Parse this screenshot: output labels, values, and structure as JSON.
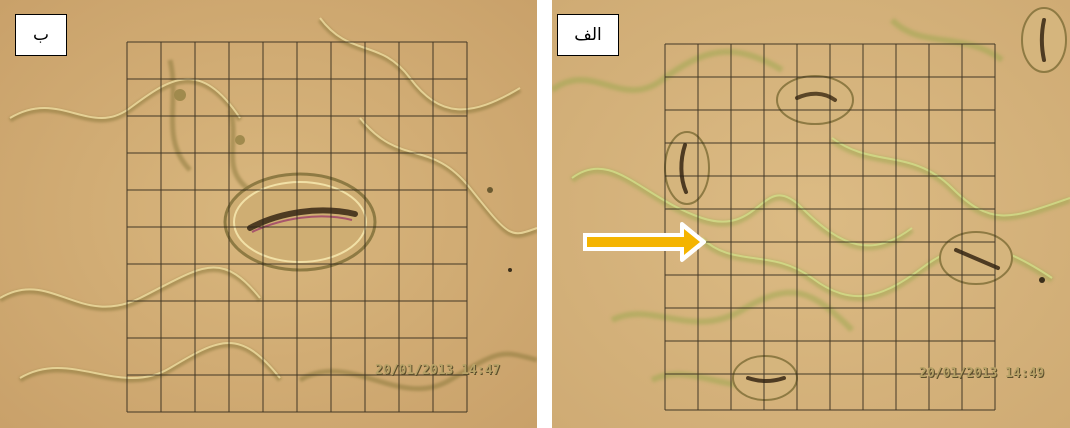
{
  "panels": {
    "right_panel": {
      "label": "ب",
      "timestamp": "20/01/2013 14:47"
    },
    "left_panel": {
      "label": "الف",
      "timestamp": "20/01/2013 14:49",
      "arrow_color": "#f4b400"
    }
  },
  "colors": {
    "background_tan": "#d6b27b",
    "grid_line": "#2b2418",
    "cell_wall": "#b8c86a"
  }
}
